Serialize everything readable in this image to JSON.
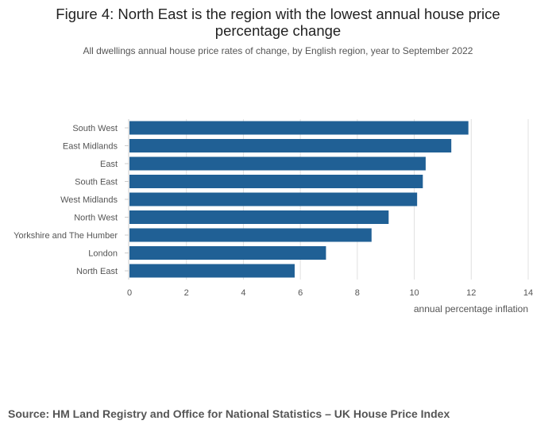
{
  "title_lines": [
    "Figure 4: North East is the region with the lowest annual house price",
    "percentage change"
  ],
  "subtitle": "All dwellings annual house price rates of change, by English region, year to September 2022",
  "source": "Source: HM Land Registry and Office for National Statistics – UK House Price Index",
  "colors": {
    "bar": "#206095",
    "grid": "#e0e0e0",
    "axis": "#cccccc",
    "label": "#555555"
  },
  "chart_data": {
    "type": "bar",
    "orientation": "horizontal",
    "categories": [
      "South West",
      "East Midlands",
      "East",
      "South East",
      "West Midlands",
      "North West",
      "Yorkshire and The Humber",
      "London",
      "North East"
    ],
    "values": [
      11.9,
      11.3,
      10.4,
      10.3,
      10.1,
      9.1,
      8.5,
      6.9,
      5.8
    ],
    "xlabel": "annual percentage inflation",
    "ylabel": "",
    "xlim": [
      0,
      14
    ],
    "xticks": [
      "0",
      "2",
      "4",
      "6",
      "8",
      "10",
      "12",
      "14"
    ],
    "grid": true,
    "legend": "none"
  }
}
